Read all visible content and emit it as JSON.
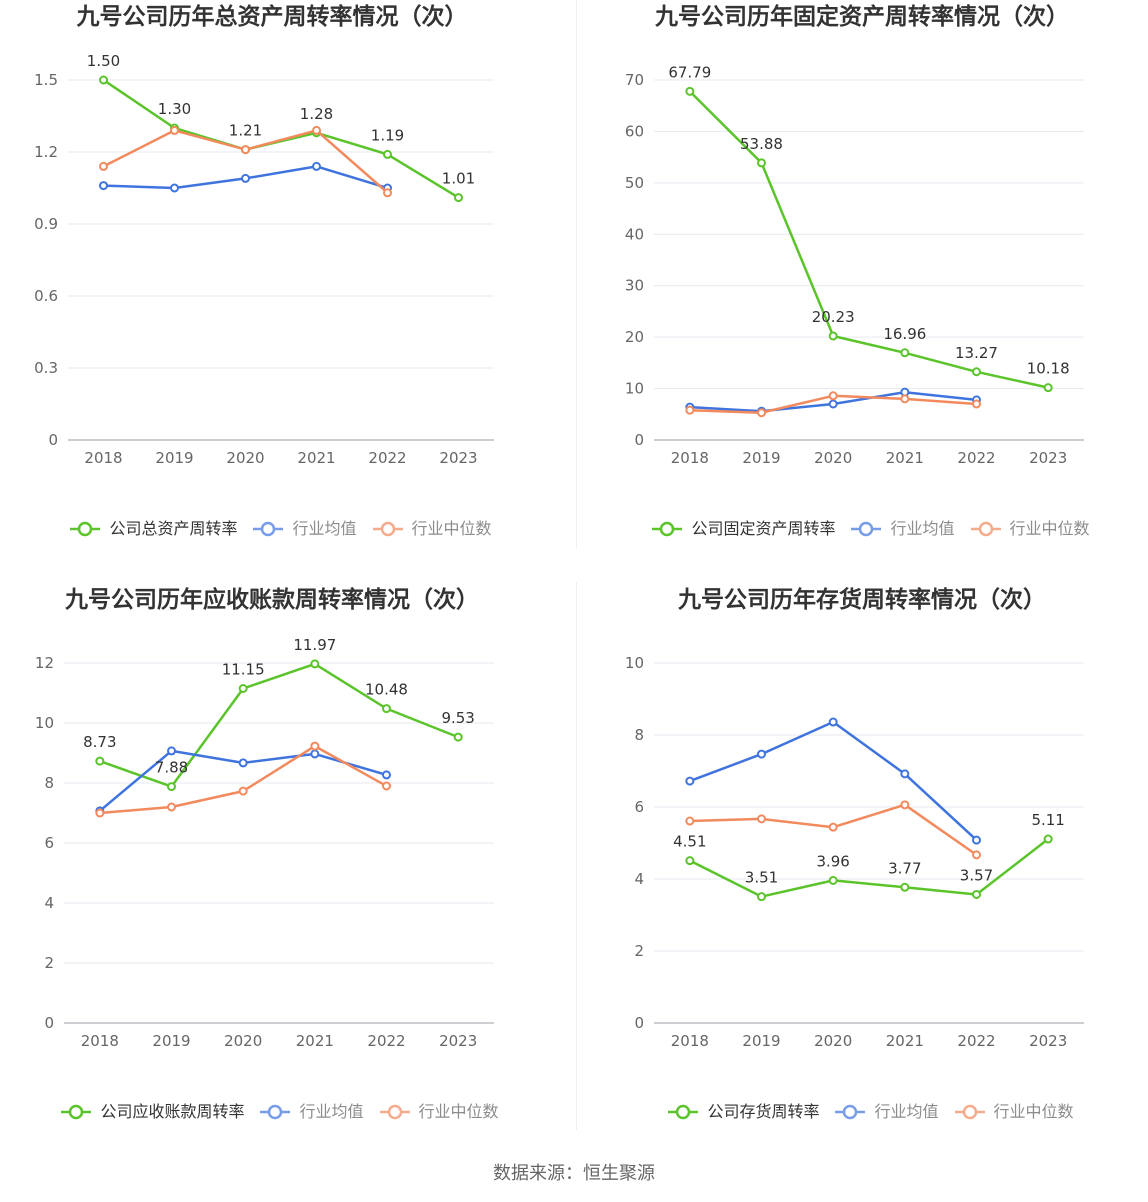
{
  "source": "数据来源：恒生聚源",
  "chart_data": [
    {
      "type": "line",
      "title": "九号公司历年总资产周转率情况（次）",
      "categories": [
        "2018",
        "2019",
        "2020",
        "2021",
        "2022",
        "2023"
      ],
      "yticks": [
        0,
        0.3,
        0.6,
        0.9,
        1.2,
        1.5
      ],
      "ylim": [
        0,
        1.5
      ],
      "grid": true,
      "legend": "bottom",
      "series": [
        {
          "name": "公司总资产周转率",
          "color": "#5ac42a",
          "data_labels": true,
          "values": [
            1.5,
            1.3,
            1.21,
            1.28,
            1.19,
            1.01
          ]
        },
        {
          "name": "行业均值",
          "color": "#3f74df",
          "data_labels": false,
          "values": [
            1.06,
            1.05,
            1.09,
            1.14,
            1.05,
            null
          ]
        },
        {
          "name": "行业中位数",
          "color": "#f28a5d",
          "data_labels": false,
          "values": [
            1.14,
            1.29,
            1.21,
            1.29,
            1.03,
            null
          ]
        }
      ]
    },
    {
      "type": "line",
      "title": "九号公司历年固定资产周转率情况（次）",
      "categories": [
        "2018",
        "2019",
        "2020",
        "2021",
        "2022",
        "2023"
      ],
      "yticks": [
        0,
        10,
        20,
        30,
        40,
        50,
        60,
        70
      ],
      "ylim": [
        0,
        70
      ],
      "grid": true,
      "legend": "bottom",
      "series": [
        {
          "name": "公司固定资产周转率",
          "color": "#5ac42a",
          "data_labels": true,
          "values": [
            67.79,
            53.88,
            20.23,
            16.96,
            13.27,
            10.18
          ]
        },
        {
          "name": "行业均值",
          "color": "#3f74df",
          "data_labels": false,
          "values": [
            6.4,
            5.6,
            7.0,
            9.3,
            7.8,
            null
          ]
        },
        {
          "name": "行业中位数",
          "color": "#f28a5d",
          "data_labels": false,
          "values": [
            5.8,
            5.3,
            8.6,
            8.0,
            7.0,
            null
          ]
        }
      ]
    },
    {
      "type": "line",
      "title": "九号公司历年应收账款周转率情况（次）",
      "categories": [
        "2018",
        "2019",
        "2020",
        "2021",
        "2022",
        "2023"
      ],
      "yticks": [
        0,
        2,
        4,
        6,
        8,
        10,
        12
      ],
      "ylim": [
        0,
        12
      ],
      "grid": true,
      "legend": "bottom",
      "series": [
        {
          "name": "公司应收账款周转率",
          "color": "#5ac42a",
          "data_labels": true,
          "values": [
            8.73,
            7.88,
            11.15,
            11.97,
            10.48,
            9.53
          ]
        },
        {
          "name": "行业均值",
          "color": "#3f74df",
          "data_labels": false,
          "values": [
            7.07,
            9.07,
            8.67,
            8.97,
            8.27,
            null
          ]
        },
        {
          "name": "行业中位数",
          "color": "#f28a5d",
          "data_labels": false,
          "values": [
            7.0,
            7.2,
            7.73,
            9.23,
            7.9,
            null
          ]
        }
      ]
    },
    {
      "type": "line",
      "title": "九号公司历年存货周转率情况（次）",
      "categories": [
        "2018",
        "2019",
        "2020",
        "2021",
        "2022",
        "2023"
      ],
      "yticks": [
        0,
        2,
        4,
        6,
        8,
        10
      ],
      "ylim": [
        0,
        10
      ],
      "grid": true,
      "legend": "bottom",
      "series": [
        {
          "name": "公司存货周转率",
          "color": "#5ac42a",
          "data_labels": true,
          "values": [
            4.51,
            3.51,
            3.96,
            3.77,
            3.57,
            5.11
          ]
        },
        {
          "name": "行业均值",
          "color": "#3f74df",
          "data_labels": false,
          "values": [
            6.72,
            7.47,
            8.36,
            6.92,
            5.08,
            null
          ]
        },
        {
          "name": "行业中位数",
          "color": "#f28a5d",
          "data_labels": false,
          "values": [
            5.61,
            5.67,
            5.44,
            6.06,
            4.67,
            null
          ]
        }
      ]
    }
  ]
}
